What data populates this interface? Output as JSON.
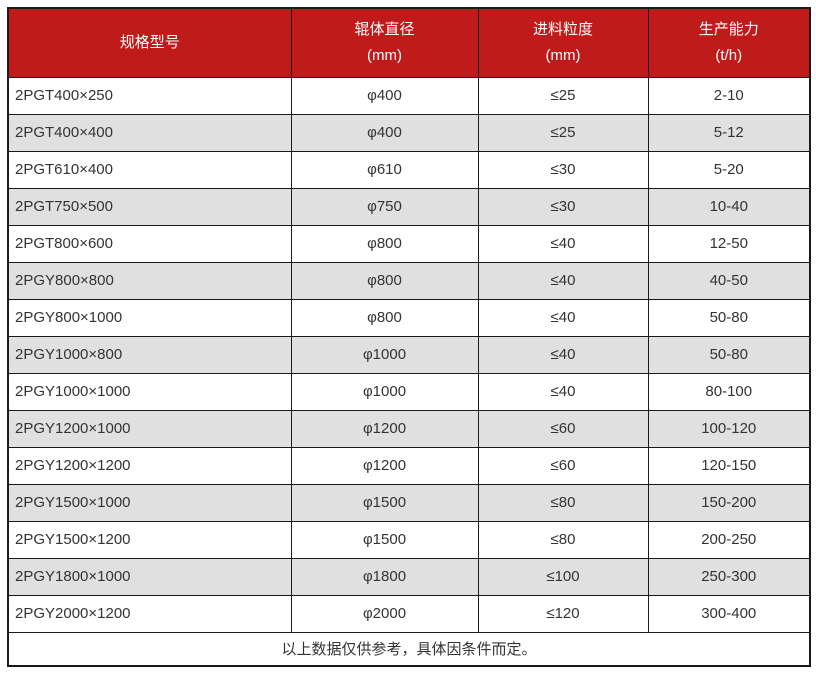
{
  "chart_data": {
    "type": "table",
    "columns": [
      {
        "label": "规格型号",
        "unit": ""
      },
      {
        "label": "辊体直径",
        "unit": "(mm)"
      },
      {
        "label": "进料粒度",
        "unit": "(mm)"
      },
      {
        "label": "生产能力",
        "unit": "(t/h)"
      }
    ],
    "rows": [
      [
        "2PGT400×250",
        "φ400",
        "≤25",
        "2-10"
      ],
      [
        "2PGT400×400",
        "φ400",
        "≤25",
        "5-12"
      ],
      [
        "2PGT610×400",
        "φ610",
        "≤30",
        "5-20"
      ],
      [
        "2PGT750×500",
        "φ750",
        "≤30",
        "10-40"
      ],
      [
        "2PGT800×600",
        "φ800",
        "≤40",
        "12-50"
      ],
      [
        "2PGY800×800",
        "φ800",
        "≤40",
        "40-50"
      ],
      [
        "2PGY800×1000",
        "φ800",
        "≤40",
        "50-80"
      ],
      [
        "2PGY1000×800",
        "φ1000",
        "≤40",
        "50-80"
      ],
      [
        "2PGY1000×1000",
        "φ1000",
        "≤40",
        "80-100"
      ],
      [
        "2PGY1200×1000",
        "φ1200",
        "≤60",
        "100-120"
      ],
      [
        "2PGY1200×1200",
        "φ1200",
        "≤60",
        "120-150"
      ],
      [
        "2PGY1500×1000",
        "φ1500",
        "≤80",
        "150-200"
      ],
      [
        "2PGY1500×1200",
        "φ1500",
        "≤80",
        "200-250"
      ],
      [
        "2PGY1800×1000",
        "φ1800",
        "≤100",
        "250-300"
      ],
      [
        "2PGY2000×1200",
        "φ2000",
        "≤120",
        "300-400"
      ]
    ],
    "footer_note": "以上数据仅供参考，具体因条件而定。"
  },
  "colors": {
    "header_bg": "#bf1b1b",
    "header_text": "#ffffff",
    "row_alt_bg": "#e0e0e0",
    "border": "#1a1a1a",
    "body_text": "#333333"
  }
}
